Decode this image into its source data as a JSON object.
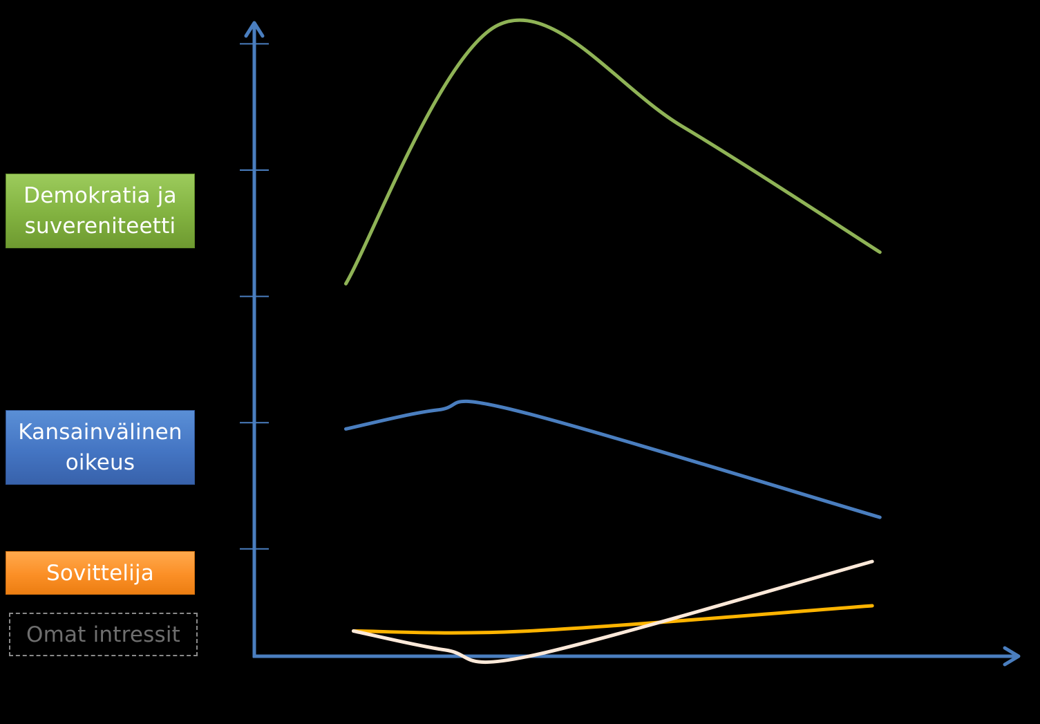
{
  "labels": {
    "democracy": "Demokratia ja suvereniteetti",
    "international_law": "Kansainvälinen oikeus",
    "mediator": "Sovittelija",
    "own_interests": "Omat intressit"
  },
  "colors": {
    "axis": "#4a7ebf",
    "democracy": "#8fb356",
    "international_law": "#4a7ebf",
    "mediator": "#ffb400",
    "own_interests": "#fde9d9"
  },
  "curves": {
    "democracy": [
      [
        0.12,
        0.59
      ],
      [
        0.32,
        1.0
      ],
      [
        0.56,
        0.84
      ],
      [
        0.82,
        0.64
      ]
    ],
    "international_law": [
      [
        0.12,
        0.36
      ],
      [
        0.24,
        0.39
      ],
      [
        0.34,
        0.39
      ],
      [
        0.82,
        0.22
      ]
    ],
    "mediator": [
      [
        0.13,
        0.04
      ],
      [
        0.36,
        0.04
      ],
      [
        0.81,
        0.08
      ]
    ],
    "own_interests": [
      [
        0.13,
        0.04
      ],
      [
        0.25,
        0.01
      ],
      [
        0.36,
        0.0
      ],
      [
        0.81,
        0.15
      ]
    ]
  },
  "axis": {
    "y_ticks": [
      0.17,
      0.37,
      0.57,
      0.77,
      0.97
    ]
  }
}
